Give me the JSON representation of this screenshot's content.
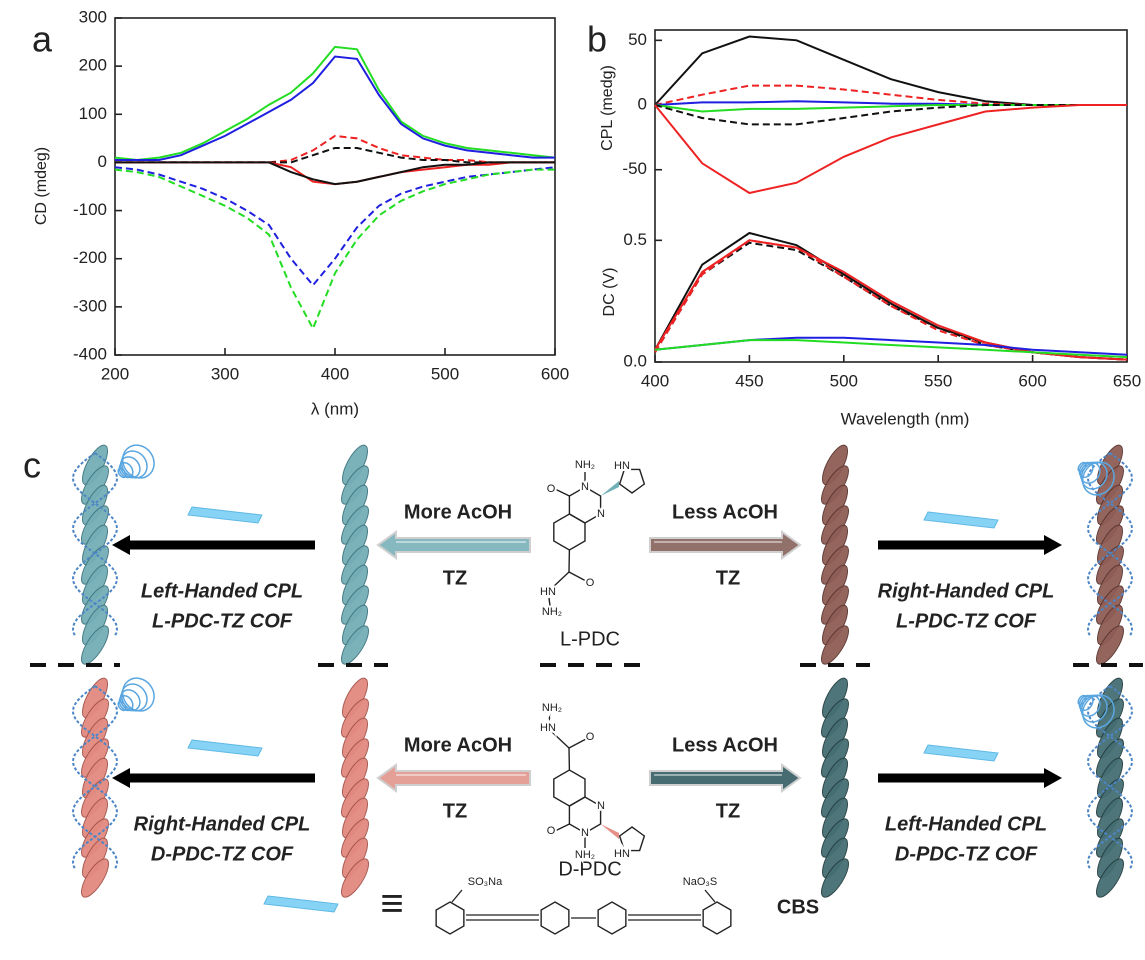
{
  "chart_data": [
    {
      "type": "line",
      "panel": "a",
      "xlabel": "λ (nm)",
      "ylabel": "CD (mdeg)",
      "x": [
        200,
        220,
        240,
        260,
        280,
        300,
        320,
        340,
        360,
        380,
        400,
        420,
        440,
        460,
        480,
        500,
        520,
        540,
        560,
        580,
        600
      ],
      "xlim": [
        200,
        600
      ],
      "xticks": [
        200,
        300,
        400,
        500,
        600
      ],
      "ylim": [
        -400,
        300
      ],
      "yticks": [
        -400,
        -300,
        -200,
        -100,
        0,
        100,
        200,
        300
      ],
      "series": [
        {
          "color": "#22dd22",
          "dash": false,
          "values": [
            10,
            5,
            10,
            20,
            40,
            65,
            90,
            120,
            145,
            185,
            240,
            235,
            150,
            85,
            55,
            40,
            30,
            25,
            20,
            15,
            10
          ]
        },
        {
          "color": "#1f1fe0",
          "dash": false,
          "values": [
            5,
            5,
            5,
            15,
            35,
            55,
            80,
            105,
            130,
            165,
            220,
            215,
            140,
            80,
            50,
            35,
            25,
            20,
            15,
            10,
            10
          ]
        },
        {
          "color": "#ee2222",
          "dash": true,
          "values": [
            0,
            0,
            0,
            0,
            0,
            0,
            0,
            0,
            5,
            25,
            55,
            50,
            30,
            15,
            10,
            5,
            5,
            0,
            0,
            0,
            0
          ]
        },
        {
          "color": "#111111",
          "dash": true,
          "values": [
            0,
            0,
            0,
            0,
            0,
            0,
            0,
            0,
            0,
            15,
            30,
            30,
            20,
            10,
            5,
            5,
            0,
            0,
            0,
            0,
            0
          ]
        },
        {
          "color": "#ee2222",
          "dash": false,
          "values": [
            0,
            0,
            0,
            0,
            0,
            0,
            0,
            0,
            -10,
            -40,
            -45,
            -40,
            -30,
            -20,
            -15,
            -10,
            -5,
            -5,
            0,
            0,
            0
          ]
        },
        {
          "color": "#111111",
          "dash": false,
          "values": [
            0,
            0,
            0,
            0,
            0,
            0,
            0,
            0,
            -20,
            -35,
            -45,
            -40,
            -30,
            -20,
            -10,
            -5,
            -5,
            0,
            0,
            0,
            0
          ]
        },
        {
          "color": "#1f1fe0",
          "dash": true,
          "values": [
            -10,
            -15,
            -25,
            -40,
            -55,
            -75,
            -100,
            -130,
            -200,
            -255,
            -200,
            -135,
            -90,
            -65,
            -50,
            -40,
            -30,
            -25,
            -20,
            -15,
            -10
          ]
        },
        {
          "color": "#22dd22",
          "dash": true,
          "values": [
            -15,
            -20,
            -30,
            -50,
            -70,
            -90,
            -115,
            -150,
            -260,
            -345,
            -230,
            -160,
            -110,
            -80,
            -60,
            -45,
            -35,
            -25,
            -20,
            -15,
            -15
          ]
        }
      ]
    },
    {
      "type": "line",
      "panel": "b",
      "ylabel": "CPL (medg)",
      "x": [
        400,
        425,
        450,
        475,
        500,
        525,
        550,
        575,
        600,
        625,
        650
      ],
      "xlim": [
        400,
        650
      ],
      "ylim": [
        -85,
        58
      ],
      "yticks": [
        -50,
        0,
        50
      ],
      "series": [
        {
          "color": "#111111",
          "dash": false,
          "values": [
            0,
            40,
            53,
            50,
            35,
            20,
            10,
            3,
            0,
            0,
            0
          ]
        },
        {
          "color": "#ee2222",
          "dash": true,
          "values": [
            0,
            8,
            15,
            15,
            12,
            8,
            4,
            1,
            0,
            0,
            0
          ]
        },
        {
          "color": "#1f1fe0",
          "dash": false,
          "values": [
            0,
            2,
            2,
            3,
            2,
            1,
            1,
            0,
            0,
            0,
            0
          ]
        },
        {
          "color": "#22dd22",
          "dash": false,
          "values": [
            0,
            -5,
            -3,
            -3,
            -2,
            -1,
            0,
            0,
            0,
            0,
            0
          ]
        },
        {
          "color": "#111111",
          "dash": true,
          "values": [
            0,
            -10,
            -15,
            -15,
            -10,
            -5,
            -2,
            0,
            0,
            0,
            0
          ]
        },
        {
          "color": "#ee2222",
          "dash": false,
          "values": [
            0,
            -45,
            -68,
            -60,
            -40,
            -25,
            -15,
            -5,
            -2,
            0,
            0
          ]
        }
      ]
    },
    {
      "type": "line",
      "xlabel": "Wavelength (nm)",
      "ylabel": "DC (V)",
      "x": [
        400,
        425,
        450,
        475,
        500,
        525,
        550,
        575,
        600,
        625,
        650
      ],
      "xlim": [
        400,
        650
      ],
      "xticks": [
        400,
        450,
        500,
        550,
        600,
        650
      ],
      "ylim": [
        0,
        0.6
      ],
      "yticks": [
        {
          "value": 0,
          "label": "0.0"
        },
        0.5
      ],
      "series": [
        {
          "color": "#111111",
          "dash": false,
          "values": [
            0.05,
            0.4,
            0.53,
            0.48,
            0.36,
            0.24,
            0.14,
            0.08,
            0.04,
            0.02,
            0.01
          ]
        },
        {
          "color": "#111111",
          "dash": true,
          "values": [
            0.04,
            0.36,
            0.49,
            0.46,
            0.35,
            0.23,
            0.14,
            0.07,
            0.04,
            0.02,
            0.01
          ]
        },
        {
          "color": "#ee2222",
          "dash": true,
          "values": [
            0.04,
            0.36,
            0.5,
            0.47,
            0.35,
            0.23,
            0.13,
            0.07,
            0.04,
            0.02,
            0.01
          ]
        },
        {
          "color": "#ee2222",
          "dash": false,
          "values": [
            0.05,
            0.37,
            0.5,
            0.47,
            0.37,
            0.25,
            0.15,
            0.08,
            0.04,
            0.02,
            0.01
          ]
        },
        {
          "color": "#1f1fe0",
          "dash": false,
          "values": [
            0.05,
            0.07,
            0.09,
            0.1,
            0.1,
            0.09,
            0.08,
            0.07,
            0.05,
            0.04,
            0.03
          ]
        },
        {
          "color": "#22dd22",
          "dash": false,
          "values": [
            0.05,
            0.07,
            0.09,
            0.09,
            0.08,
            0.07,
            0.06,
            0.05,
            0.04,
            0.03,
            0.02
          ]
        }
      ]
    }
  ],
  "diagram": {
    "label": "c",
    "rows": [
      {
        "more": "More AcOH",
        "reagent_left": "TZ",
        "less": "Less AcOH",
        "reagent_right": "TZ",
        "left_product": [
          "Left-Handed CPL",
          "L-PDC-TZ COF"
        ],
        "right_product": [
          "Right-Handed CPL",
          "L-PDC-TZ COF"
        ],
        "monomer": "L-PDC",
        "atoms": [
          "NH₂",
          "N",
          "HN",
          "O",
          "N",
          "HN",
          "NH₂",
          "O"
        ]
      },
      {
        "more": "More AcOH",
        "reagent_left": "TZ",
        "less": "Less AcOH",
        "reagent_right": "TZ",
        "left_product": [
          "Right-Handed CPL",
          "D-PDC-TZ COF"
        ],
        "right_product": [
          "Left-Handed CPL",
          "D-PDC-TZ COF"
        ],
        "monomer": "D-PDC",
        "atoms": [
          "NH₂",
          "N",
          "HN",
          "O",
          "N",
          "HN",
          "NH₂",
          "O"
        ]
      }
    ],
    "legend": {
      "symbol": "≡",
      "substituents": [
        "SO₃Na",
        "NaO₃S"
      ],
      "name": "CBS"
    }
  }
}
